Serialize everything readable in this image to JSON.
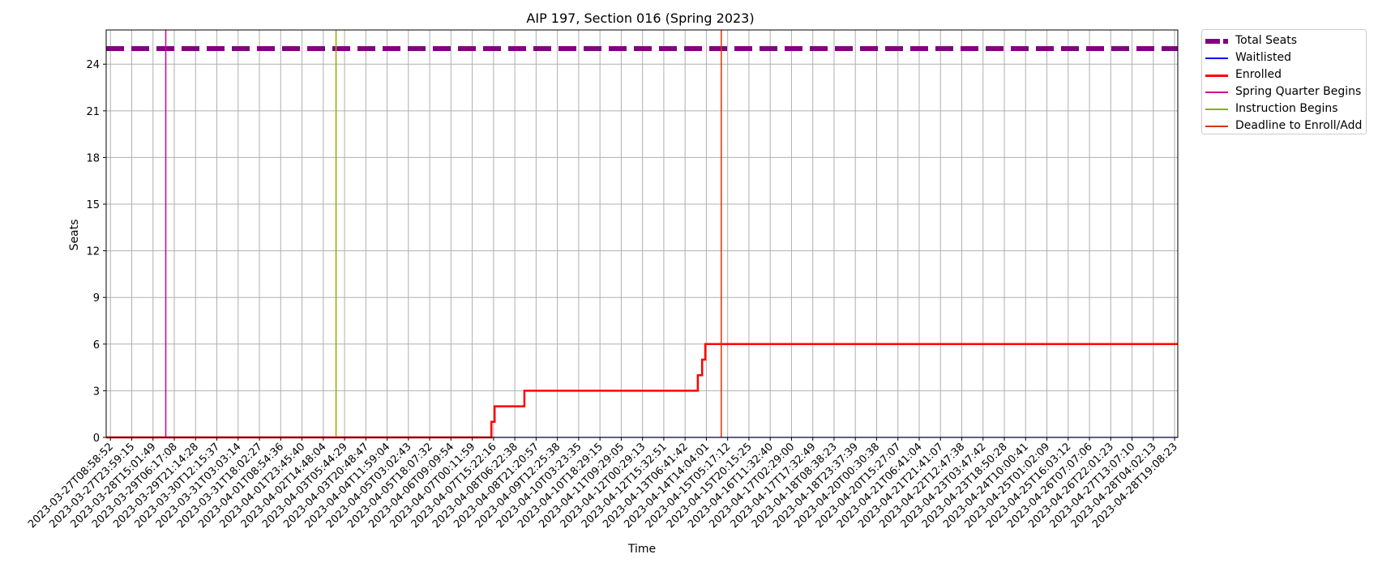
{
  "chart_data": {
    "type": "line",
    "title": "AIP 197, Section 016 (Spring 2023)",
    "xlabel": "Time",
    "ylabel": "Seats",
    "ylim": [
      0,
      26.2
    ],
    "yticks": [
      0,
      3,
      6,
      9,
      12,
      15,
      18,
      21,
      24
    ],
    "grid": true,
    "legend_position": "outside-top-right",
    "x_tick_labels": [
      "2023-03-27T08:58:52",
      "2023-03-27T23:59:15",
      "2023-03-28T15:01:49",
      "2023-03-29T06:17:08",
      "2023-03-29T21:14:28",
      "2023-03-30T12:15:37",
      "2023-03-31T03:03:14",
      "2023-03-31T18:02:27",
      "2023-04-01T08:54:36",
      "2023-04-01T23:45:40",
      "2023-04-02T14:48:04",
      "2023-04-03T05:44:29",
      "2023-04-03T20:48:47",
      "2023-04-04T11:59:04",
      "2023-04-05T03:02:43",
      "2023-04-05T18:07:32",
      "2023-04-06T09:09:54",
      "2023-04-07T00:11:59",
      "2023-04-07T15:22:16",
      "2023-04-08T06:22:38",
      "2023-04-08T21:20:57",
      "2023-04-09T12:25:38",
      "2023-04-10T03:23:35",
      "2023-04-10T18:29:15",
      "2023-04-11T09:29:05",
      "2023-04-12T00:29:13",
      "2023-04-12T15:32:51",
      "2023-04-13T06:41:42",
      "2023-04-14T14:04:01",
      "2023-04-15T05:17:12",
      "2023-04-15T20:15:25",
      "2023-04-16T11:32:40",
      "2023-04-17T02:29:00",
      "2023-04-17T17:32:49",
      "2023-04-18T08:38:23",
      "2023-04-18T23:37:39",
      "2023-04-20T00:30:38",
      "2023-04-20T15:27:07",
      "2023-04-21T06:41:04",
      "2023-04-21T21:41:07",
      "2023-04-22T12:47:38",
      "2023-04-23T03:47:42",
      "2023-04-23T18:50:28",
      "2023-04-24T10:00:41",
      "2023-04-25T01:02:09",
      "2023-04-25T16:03:12",
      "2023-04-26T07:07:06",
      "2023-04-26T22:01:23",
      "2023-04-27T13:07:10",
      "2023-04-28T04:02:13",
      "2023-04-28T19:08:23"
    ],
    "x_range_ticks": [
      -0.2,
      50.15
    ],
    "series": [
      {
        "name": "Total Seats",
        "color": "#800080",
        "style": "dashed-thick",
        "points": [
          [
            -0.2,
            25
          ],
          [
            50.15,
            25
          ]
        ]
      },
      {
        "name": "Waitlisted",
        "color": "#0000ff",
        "style": "solid",
        "points": [
          [
            -0.2,
            0
          ],
          [
            50.15,
            0
          ]
        ]
      },
      {
        "name": "Enrolled",
        "color": "#ff0000",
        "style": "solid-thick",
        "points": [
          [
            -0.2,
            0
          ],
          [
            17.9,
            0
          ],
          [
            17.9,
            1
          ],
          [
            18.05,
            1
          ],
          [
            18.05,
            2
          ],
          [
            19.45,
            2
          ],
          [
            19.45,
            3
          ],
          [
            27.6,
            3
          ],
          [
            27.6,
            4
          ],
          [
            27.8,
            4
          ],
          [
            27.8,
            5
          ],
          [
            27.95,
            5
          ],
          [
            27.95,
            6
          ],
          [
            50.15,
            6
          ]
        ]
      }
    ],
    "vlines": [
      {
        "name": "Spring Quarter Begins",
        "color": "#cc0099",
        "x": 2.6
      },
      {
        "name": "Instruction Begins",
        "color": "#88b000",
        "x": 10.6
      },
      {
        "name": "Deadline to Enroll/Add",
        "color": "#dd3300",
        "x": 28.7
      }
    ]
  }
}
